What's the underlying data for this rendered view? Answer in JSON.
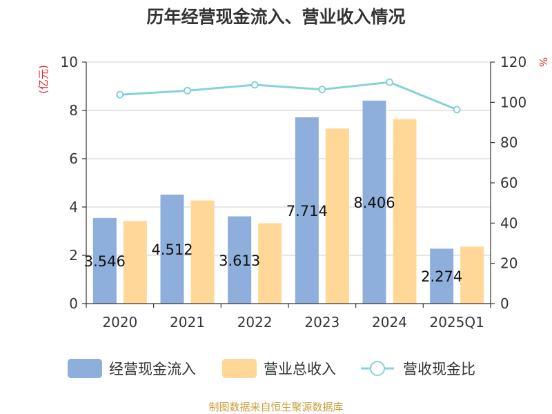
{
  "chart_data": {
    "type": "bar",
    "title": "历年经营现金流入、营业收入情况",
    "categories": [
      "2020",
      "2021",
      "2022",
      "2023",
      "2024",
      "2025Q1"
    ],
    "series": [
      {
        "name": "经营现金流入",
        "kind": "bar",
        "axis": "left",
        "color": "#8eaedb",
        "values": [
          3.546,
          4.512,
          3.613,
          7.714,
          8.406,
          2.274
        ],
        "labels": [
          "3.546",
          "4.512",
          "3.613",
          "7.714",
          "8.406",
          "2.274"
        ]
      },
      {
        "name": "营业总收入",
        "kind": "bar",
        "axis": "left",
        "color": "#ffd898",
        "values": [
          3.42,
          4.27,
          3.33,
          7.25,
          7.64,
          2.36
        ]
      },
      {
        "name": "营收现金比",
        "kind": "line",
        "axis": "right",
        "color": "#86d2d8",
        "values": [
          103.8,
          105.8,
          108.7,
          106.4,
          110.0,
          96.4
        ]
      }
    ],
    "y_left": {
      "unit": "(亿元)",
      "min": 0,
      "max": 10,
      "ticks": [
        0,
        2,
        4,
        6,
        8,
        10
      ]
    },
    "y_right": {
      "unit": "%",
      "min": 0,
      "max": 120,
      "ticks": [
        0,
        20,
        40,
        60,
        80,
        100,
        120
      ]
    },
    "grid": true,
    "legend_position": "bottom"
  },
  "source": "制图数据来自恒生聚源数据库"
}
